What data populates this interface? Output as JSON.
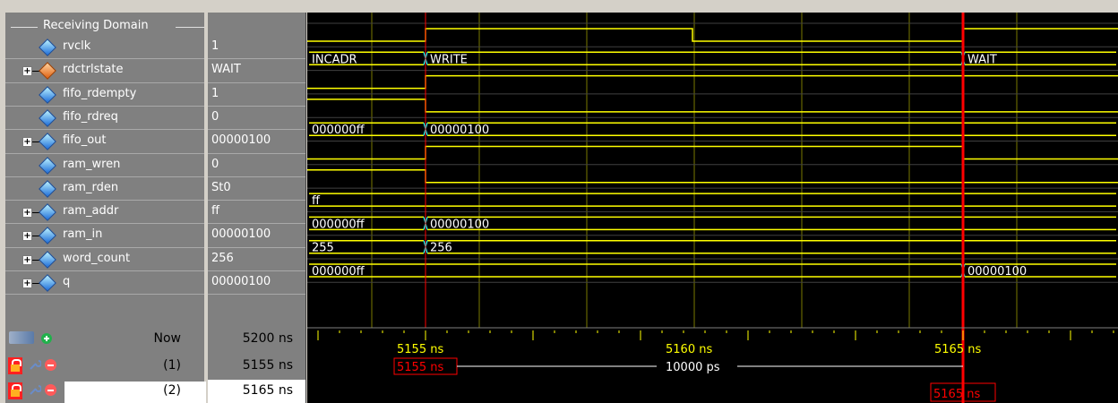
{
  "group": {
    "label": "Receiving Domain"
  },
  "signals": [
    {
      "name": "rvclk",
      "value": "1",
      "expandable": false,
      "icon": "diamond-blue-icon"
    },
    {
      "name": "rdctrlstate",
      "value": "WAIT",
      "expandable": true,
      "icon": "diamond-orange-icon"
    },
    {
      "name": "fifo_rdempty",
      "value": "1",
      "expandable": false,
      "icon": "diamond-blue-icon"
    },
    {
      "name": "fifo_rdreq",
      "value": "0",
      "expandable": false,
      "icon": "diamond-blue-icon"
    },
    {
      "name": "fifo_out",
      "value": "00000100",
      "expandable": true,
      "icon": "diamond-blue-icon"
    },
    {
      "name": "ram_wren",
      "value": "0",
      "expandable": false,
      "icon": "diamond-blue-icon"
    },
    {
      "name": "ram_rden",
      "value": "St0",
      "expandable": false,
      "icon": "diamond-blue-icon"
    },
    {
      "name": "ram_addr",
      "value": "ff",
      "expandable": true,
      "icon": "diamond-blue-icon"
    },
    {
      "name": "ram_in",
      "value": "00000100",
      "expandable": true,
      "icon": "diamond-blue-icon"
    },
    {
      "name": "word_count",
      "value": "256",
      "expandable": true,
      "icon": "diamond-blue-icon"
    },
    {
      "name": "q",
      "value": "00000100",
      "expandable": true,
      "icon": "diamond-blue-icon"
    }
  ],
  "bus_labels": {
    "rdctrlstate": [
      "INCADR",
      "WRITE",
      "WAIT"
    ],
    "fifo_out": [
      "000000ff",
      "00000100"
    ],
    "ram_addr": [
      "ff"
    ],
    "ram_in": [
      "000000ff",
      "00000100"
    ],
    "word_count": [
      "255",
      "256"
    ],
    "q": [
      "000000ff",
      "00000100"
    ]
  },
  "now": {
    "label": "Now",
    "value": "5200 ns"
  },
  "cursors": [
    {
      "label": "(1)",
      "value": "5155 ns",
      "marker": "5155 ns"
    },
    {
      "label": "(2)",
      "value": "5165 ns",
      "marker": "5165 ns"
    }
  ],
  "timeline": {
    "ticks": [
      "5155 ns",
      "5160 ns",
      "5165 ns"
    ],
    "delta": "10000 ps"
  },
  "colors": {
    "wave": "#ffff00",
    "bus_text": "#ffffff",
    "cursor_active": "#ff0000",
    "cursor": "#ffff00",
    "transition": "#00ffff"
  }
}
